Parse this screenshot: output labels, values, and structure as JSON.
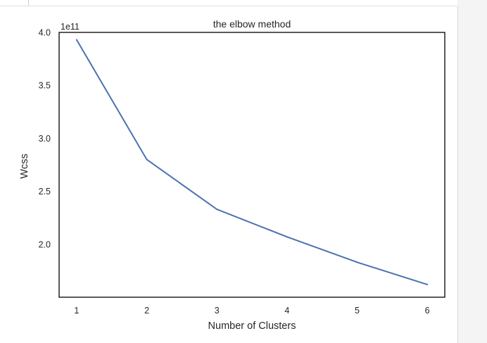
{
  "chart_data": {
    "type": "line",
    "title": "the elbow method",
    "xlabel": "Number of Clusters",
    "ylabel": "Wcss",
    "offset_label": "1e11",
    "x": [
      1,
      2,
      3,
      4,
      5,
      6
    ],
    "y": [
      3.93,
      2.8,
      2.33,
      2.07,
      1.83,
      1.62
    ],
    "xticks": [
      "1",
      "2",
      "3",
      "4",
      "5",
      "6"
    ],
    "yticks": [
      {
        "value": 2.0,
        "label": "2.0"
      },
      {
        "value": 2.5,
        "label": "2.5"
      },
      {
        "value": 3.0,
        "label": "3.0"
      },
      {
        "value": 3.5,
        "label": "3.5"
      },
      {
        "value": 4.0,
        "label": "4.0"
      }
    ],
    "xlim": [
      0.75,
      6.25
    ],
    "ylim": [
      1.5,
      4.0
    ],
    "grid": false,
    "line_color": "#4c72b0"
  }
}
